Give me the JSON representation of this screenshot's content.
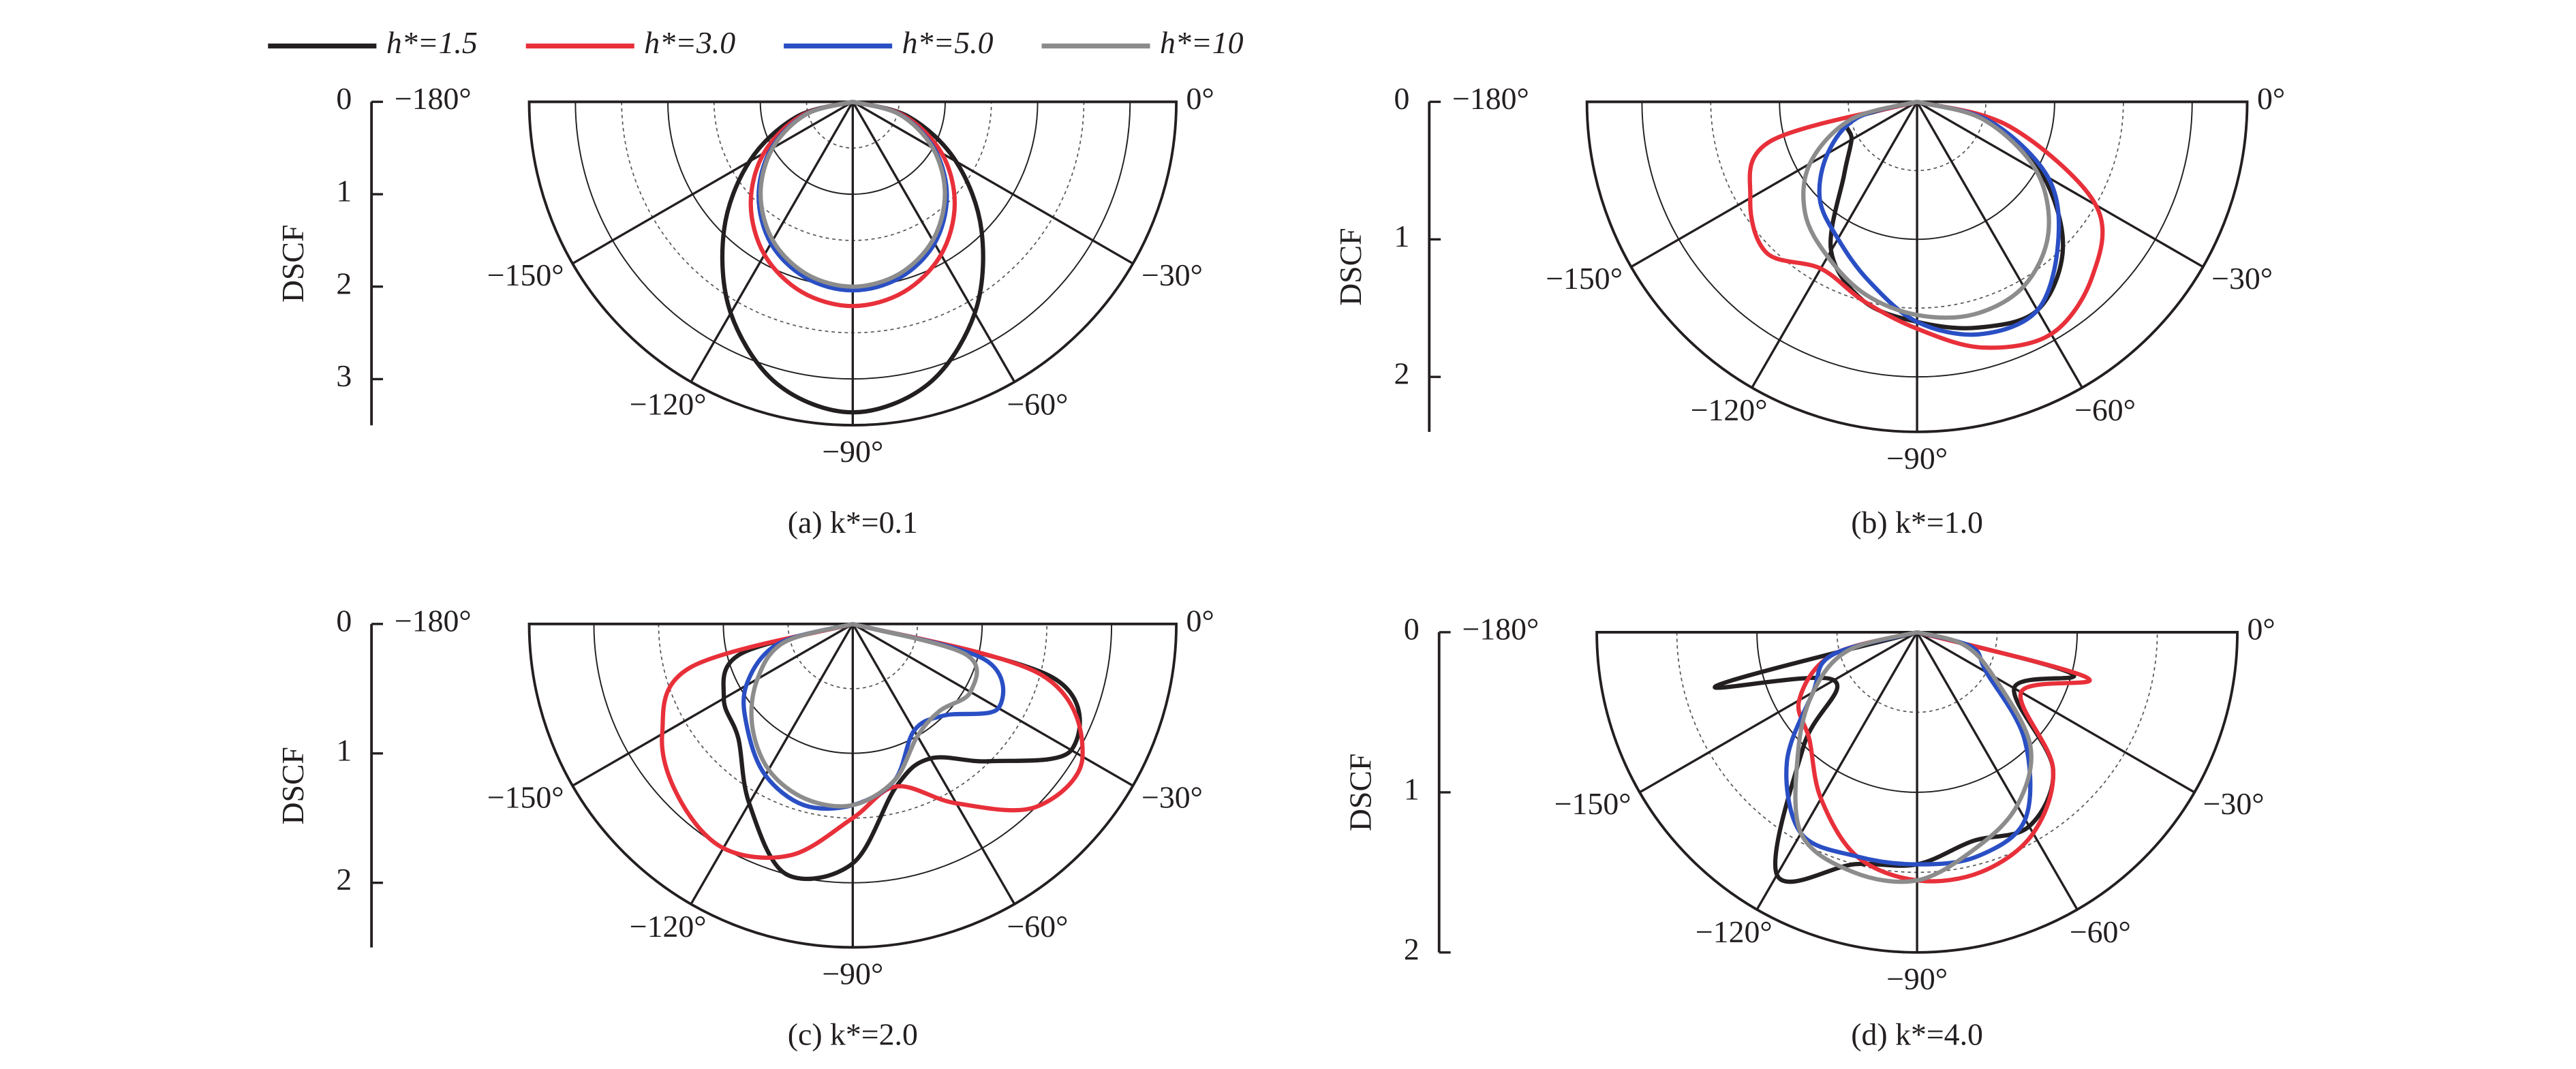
{
  "chart_data": [
    {
      "type": "polar",
      "title": "(a) k*=0.1",
      "ylabel": "DSCF",
      "x": [
        0,
        -15,
        -30,
        -45,
        -60,
        -75,
        -90,
        -105,
        -120,
        -135,
        -150,
        -165,
        -180
      ],
      "xticks": [
        {
          "value": 0,
          "label": "0°"
        },
        {
          "value": -30,
          "label": "−30°"
        },
        {
          "value": -60,
          "label": "−60°"
        },
        {
          "value": -90,
          "label": "−90°"
        },
        {
          "value": -120,
          "label": "−120°"
        },
        {
          "value": -150,
          "label": "−150°"
        },
        {
          "value": -180,
          "label": "−180°"
        }
      ],
      "ylim": [
        0,
        3.5
      ],
      "yticks": [
        0,
        1,
        2,
        3
      ],
      "series": [
        {
          "name": "h*=1.5",
          "color": "#231f20",
          "values": [
            0,
            0.63,
            1.29,
            1.97,
            2.64,
            3.16,
            3.36,
            3.16,
            2.64,
            1.97,
            1.29,
            0.63,
            0
          ]
        },
        {
          "name": "h*=3.0",
          "color": "#e8303a",
          "values": [
            0,
            0.57,
            1.11,
            1.56,
            1.91,
            2.13,
            2.21,
            2.13,
            1.91,
            1.56,
            1.11,
            0.57,
            0
          ]
        },
        {
          "name": "h*=5.0",
          "color": "#2a4fc4",
          "values": [
            0,
            0.53,
            1.02,
            1.44,
            1.77,
            1.97,
            2.04,
            1.97,
            1.77,
            1.44,
            1.02,
            0.53,
            0
          ]
        },
        {
          "name": "h*=10",
          "color": "#8c8c8c",
          "values": [
            0,
            0.52,
            1.0,
            1.41,
            1.73,
            1.93,
            2.0,
            1.93,
            1.73,
            1.41,
            1.0,
            0.52,
            0
          ]
        }
      ]
    },
    {
      "type": "polar",
      "title": "(b) k*=1.0",
      "ylabel": "DSCF",
      "x": [
        0,
        -15,
        -30,
        -45,
        -60,
        -75,
        -90,
        -105,
        -120,
        -135,
        -150,
        -165,
        -180
      ],
      "xticks": [
        {
          "value": 0,
          "label": "0°"
        },
        {
          "value": -30,
          "label": "−30°"
        },
        {
          "value": -60,
          "label": "−60°"
        },
        {
          "value": -90,
          "label": "−90°"
        },
        {
          "value": -120,
          "label": "−120°"
        },
        {
          "value": -150,
          "label": "−150°"
        },
        {
          "value": -180,
          "label": "−180°"
        }
      ],
      "ylim": [
        0,
        2.4
      ],
      "yticks": [
        0,
        1,
        2
      ],
      "series": [
        {
          "color": "#231f20",
          "values": [
            0,
            0.55,
            1.05,
            1.5,
            1.75,
            1.7,
            1.6,
            1.5,
            1.25,
            0.75,
            0.55,
            0.5,
            0
          ]
        },
        {
          "color": "#e8303a",
          "values": [
            0,
            0.7,
            1.5,
            1.8,
            1.95,
            1.85,
            1.65,
            1.5,
            1.4,
            1.55,
            1.4,
            1.1,
            0
          ]
        },
        {
          "color": "#2a4fc4",
          "values": [
            0,
            0.55,
            1.1,
            1.45,
            1.75,
            1.75,
            1.6,
            1.35,
            1.15,
            1.0,
            0.75,
            0.45,
            0
          ]
        },
        {
          "color": "#8c8c8c",
          "values": [
            0,
            0.5,
            1.0,
            1.35,
            1.55,
            1.6,
            1.55,
            1.45,
            1.3,
            1.15,
            0.9,
            0.5,
            0
          ]
        }
      ]
    },
    {
      "type": "polar",
      "title": "(c) k*=2.0",
      "ylabel": "DSCF",
      "x": [
        0,
        -15,
        -30,
        -45,
        -60,
        -75,
        -90,
        -105,
        -120,
        -135,
        -150,
        -165,
        -180
      ],
      "xticks": [
        {
          "value": 0,
          "label": "0°"
        },
        {
          "value": -30,
          "label": "−30°"
        },
        {
          "value": -60,
          "label": "−60°"
        },
        {
          "value": -90,
          "label": "−90°"
        },
        {
          "value": -120,
          "label": "−120°"
        },
        {
          "value": -150,
          "label": "−150°"
        },
        {
          "value": -180,
          "label": "−180°"
        }
      ],
      "ylim": [
        0,
        2.5
      ],
      "yticks": [
        0,
        1,
        2
      ],
      "series": [
        {
          "color": "#231f20",
          "values": [
            0,
            1.6,
            1.95,
            1.5,
            1.2,
            1.3,
            1.85,
            2.0,
            1.6,
            1.25,
            1.15,
            0.9,
            0
          ]
        },
        {
          "color": "#e8303a",
          "values": [
            0,
            1.5,
            2.05,
            2.0,
            1.6,
            1.3,
            1.5,
            1.85,
            2.0,
            1.9,
            1.7,
            1.3,
            0
          ]
        },
        {
          "color": "#2a4fc4",
          "values": [
            0,
            1.05,
            1.3,
            1.0,
            0.95,
            1.25,
            1.4,
            1.45,
            1.35,
            1.15,
            0.95,
            0.6,
            0
          ]
        },
        {
          "color": "#8c8c8c",
          "values": [
            0,
            0.9,
            1.05,
            0.95,
            1.0,
            1.25,
            1.4,
            1.4,
            1.3,
            1.1,
            0.85,
            0.55,
            0
          ]
        }
      ]
    },
    {
      "type": "polar",
      "title": "(d) k*=4.0",
      "ylabel": "DSCF",
      "x": [
        0,
        -15,
        -30,
        -45,
        -60,
        -75,
        -90,
        -105,
        -120,
        -135,
        -150,
        -165,
        -180
      ],
      "xticks": [
        {
          "value": 0,
          "label": "0°"
        },
        {
          "value": -30,
          "label": "−30°"
        },
        {
          "value": -60,
          "label": "−60°"
        },
        {
          "value": -90,
          "label": "−90°"
        },
        {
          "value": -120,
          "label": "−120°"
        },
        {
          "value": -150,
          "label": "−150°"
        },
        {
          "value": -180,
          "label": "−180°"
        }
      ],
      "ylim": [
        0,
        2
      ],
      "yticks": [
        0,
        1,
        2
      ],
      "series": [
        {
          "color": "#231f20",
          "values": [
            0,
            1.0,
            0.7,
            1.2,
            1.4,
            1.35,
            1.45,
            1.5,
            1.75,
            1.0,
            0.6,
            1.3,
            0
          ]
        },
        {
          "color": "#e8303a",
          "values": [
            0,
            1.1,
            0.75,
            1.2,
            1.45,
            1.55,
            1.55,
            1.45,
            1.2,
            0.95,
            0.85,
            0.55,
            0
          ]
        },
        {
          "color": "#2a4fc4",
          "values": [
            0,
            0.35,
            0.5,
            0.95,
            1.35,
            1.45,
            1.45,
            1.45,
            1.45,
            1.15,
            0.75,
            0.55,
            0
          ]
        },
        {
          "color": "#8c8c8c",
          "values": [
            0,
            0.3,
            0.55,
            1.0,
            1.25,
            1.4,
            1.55,
            1.55,
            1.45,
            1.05,
            0.75,
            0.45,
            0
          ]
        }
      ]
    }
  ]
}
